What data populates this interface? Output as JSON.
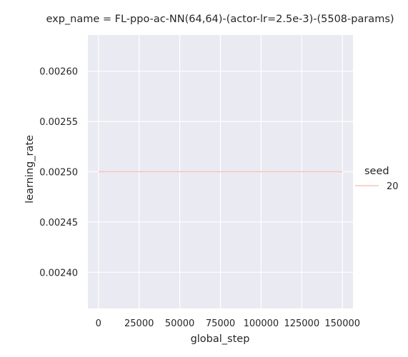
{
  "chart_data": {
    "type": "line",
    "title": "exp_name = FL-ppo-ac-NN(64,64)-(actor-lr=2.5e-3)-(5508-params)",
    "xlabel": "global_step",
    "ylabel": "learning_rate",
    "xlim": [
      -6500,
      156500
    ],
    "ylim": [
      0.002364,
      0.002636
    ],
    "xticks": [
      0,
      25000,
      50000,
      75000,
      100000,
      125000,
      150000
    ],
    "xtick_labels": [
      "0",
      "25000",
      "50000",
      "75000",
      "100000",
      "125000",
      "150000"
    ],
    "yticks": [
      0.0024,
      0.00245,
      0.0025,
      0.00255,
      0.0026
    ],
    "ytick_labels": [
      "0.00240",
      "0.00245",
      "0.00250",
      "0.00255",
      "0.00260"
    ],
    "grid": true,
    "legend": {
      "title": "seed",
      "placement": "right"
    },
    "series": [
      {
        "name": "20",
        "color": "#f4c6bd",
        "x": [
          0,
          150000
        ],
        "y": [
          0.0025,
          0.0025
        ]
      }
    ]
  },
  "style": {
    "plot_background": "#eaeaf2",
    "grid_color": "#ffffff",
    "text_color": "#262626"
  }
}
